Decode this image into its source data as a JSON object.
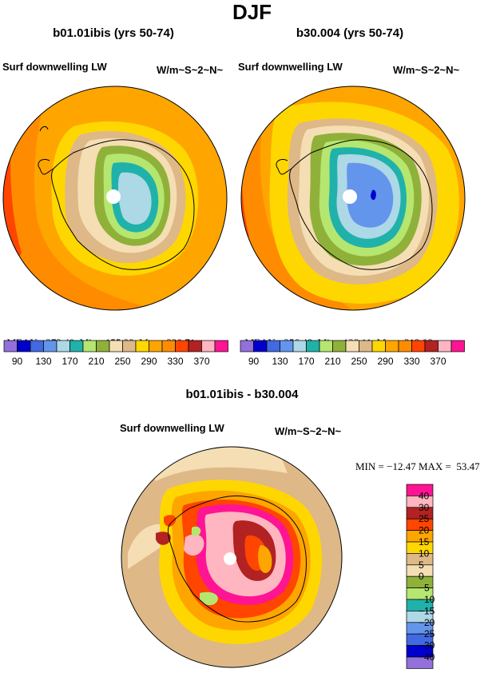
{
  "title": "DJF",
  "panels": [
    {
      "title": "b01.01ibis (yrs 50-74)",
      "variable": "Surf downwelling LW",
      "units": "W/m~S~2~N~",
      "stats": {
        "mean": "MEAN= 273.40",
        "min": "Min= 155.98",
        "max": "Max= 320.71"
      }
    },
    {
      "title": "b30.004 (yrs 50-74)",
      "variable": "Surf downwelling LW",
      "units": "W/m~S~2~N~",
      "stats": {
        "mean": "MEAN= 256.48",
        "min": "Min= 128.11",
        "max": "Max= 313.08"
      }
    }
  ],
  "diff": {
    "title": "b01.01ibis - b30.004",
    "variable": "Surf downwelling LW",
    "units": "W/m~S~2~N~",
    "stats": "MIN = −12.47 MAX =  53.47"
  },
  "chart_data": [
    {
      "type": "heatmap",
      "projection": "south-polar-stereographic",
      "title": "b01.01ibis (yrs 50-74)",
      "variable": "Surf downwelling LW",
      "units": "W/m~S~2~N~",
      "mean": 273.4,
      "min": 155.98,
      "max": 320.71,
      "levels": [
        90,
        110,
        130,
        150,
        170,
        190,
        210,
        230,
        250,
        270,
        290,
        310,
        330,
        350,
        370
      ],
      "colorbar_labels": [
        "90",
        "130",
        "170",
        "210",
        "250",
        "290",
        "330",
        "370"
      ],
      "colors": [
        "#9370db",
        "#0000cd",
        "#4169e1",
        "#6495ed",
        "#add8e6",
        "#20b2aa",
        "#b5e670",
        "#8fb13a",
        "#f5deb3",
        "#deb887",
        "#ffd700",
        "#ffa500",
        "#ff8c00",
        "#ff4500",
        "#b22222",
        "#ffb6c1",
        "#ff1493"
      ]
    },
    {
      "type": "heatmap",
      "projection": "south-polar-stereographic",
      "title": "b30.004 (yrs 50-74)",
      "variable": "Surf downwelling LW",
      "units": "W/m~S~2~N~",
      "mean": 256.48,
      "min": 128.11,
      "max": 313.08,
      "levels": [
        90,
        110,
        130,
        150,
        170,
        190,
        210,
        230,
        250,
        270,
        290,
        310,
        330,
        350,
        370
      ],
      "colorbar_labels": [
        "90",
        "130",
        "170",
        "210",
        "250",
        "290",
        "330",
        "370"
      ],
      "colors": [
        "#9370db",
        "#0000cd",
        "#4169e1",
        "#6495ed",
        "#add8e6",
        "#20b2aa",
        "#b5e670",
        "#8fb13a",
        "#f5deb3",
        "#deb887",
        "#ffd700",
        "#ffa500",
        "#ff8c00",
        "#ff4500",
        "#b22222",
        "#ffb6c1",
        "#ff1493"
      ]
    },
    {
      "type": "heatmap",
      "projection": "south-polar-stereographic",
      "title": "b01.01ibis - b30.004",
      "variable": "Surf downwelling LW",
      "units": "W/m~S~2~N~",
      "min": -12.47,
      "max": 53.47,
      "levels": [
        -40,
        -30,
        -25,
        -20,
        -15,
        -10,
        -5,
        0,
        5,
        10,
        15,
        20,
        25,
        30,
        40
      ],
      "colorbar_labels": [
        "40",
        "30",
        "25",
        "20",
        "15",
        "10",
        "5",
        "0",
        "−5",
        "−10",
        "−15",
        "−20",
        "−25",
        "−30",
        "−40"
      ],
      "colors": [
        "#ff1493",
        "#ffb6c1",
        "#b22222",
        "#ff4500",
        "#ffa500",
        "#ffd700",
        "#deb887",
        "#f5deb3",
        "#8fb13a",
        "#b5e670",
        "#20b2aa",
        "#add8e6",
        "#6495ed",
        "#4169e1",
        "#0000cd",
        "#9370db"
      ]
    }
  ]
}
